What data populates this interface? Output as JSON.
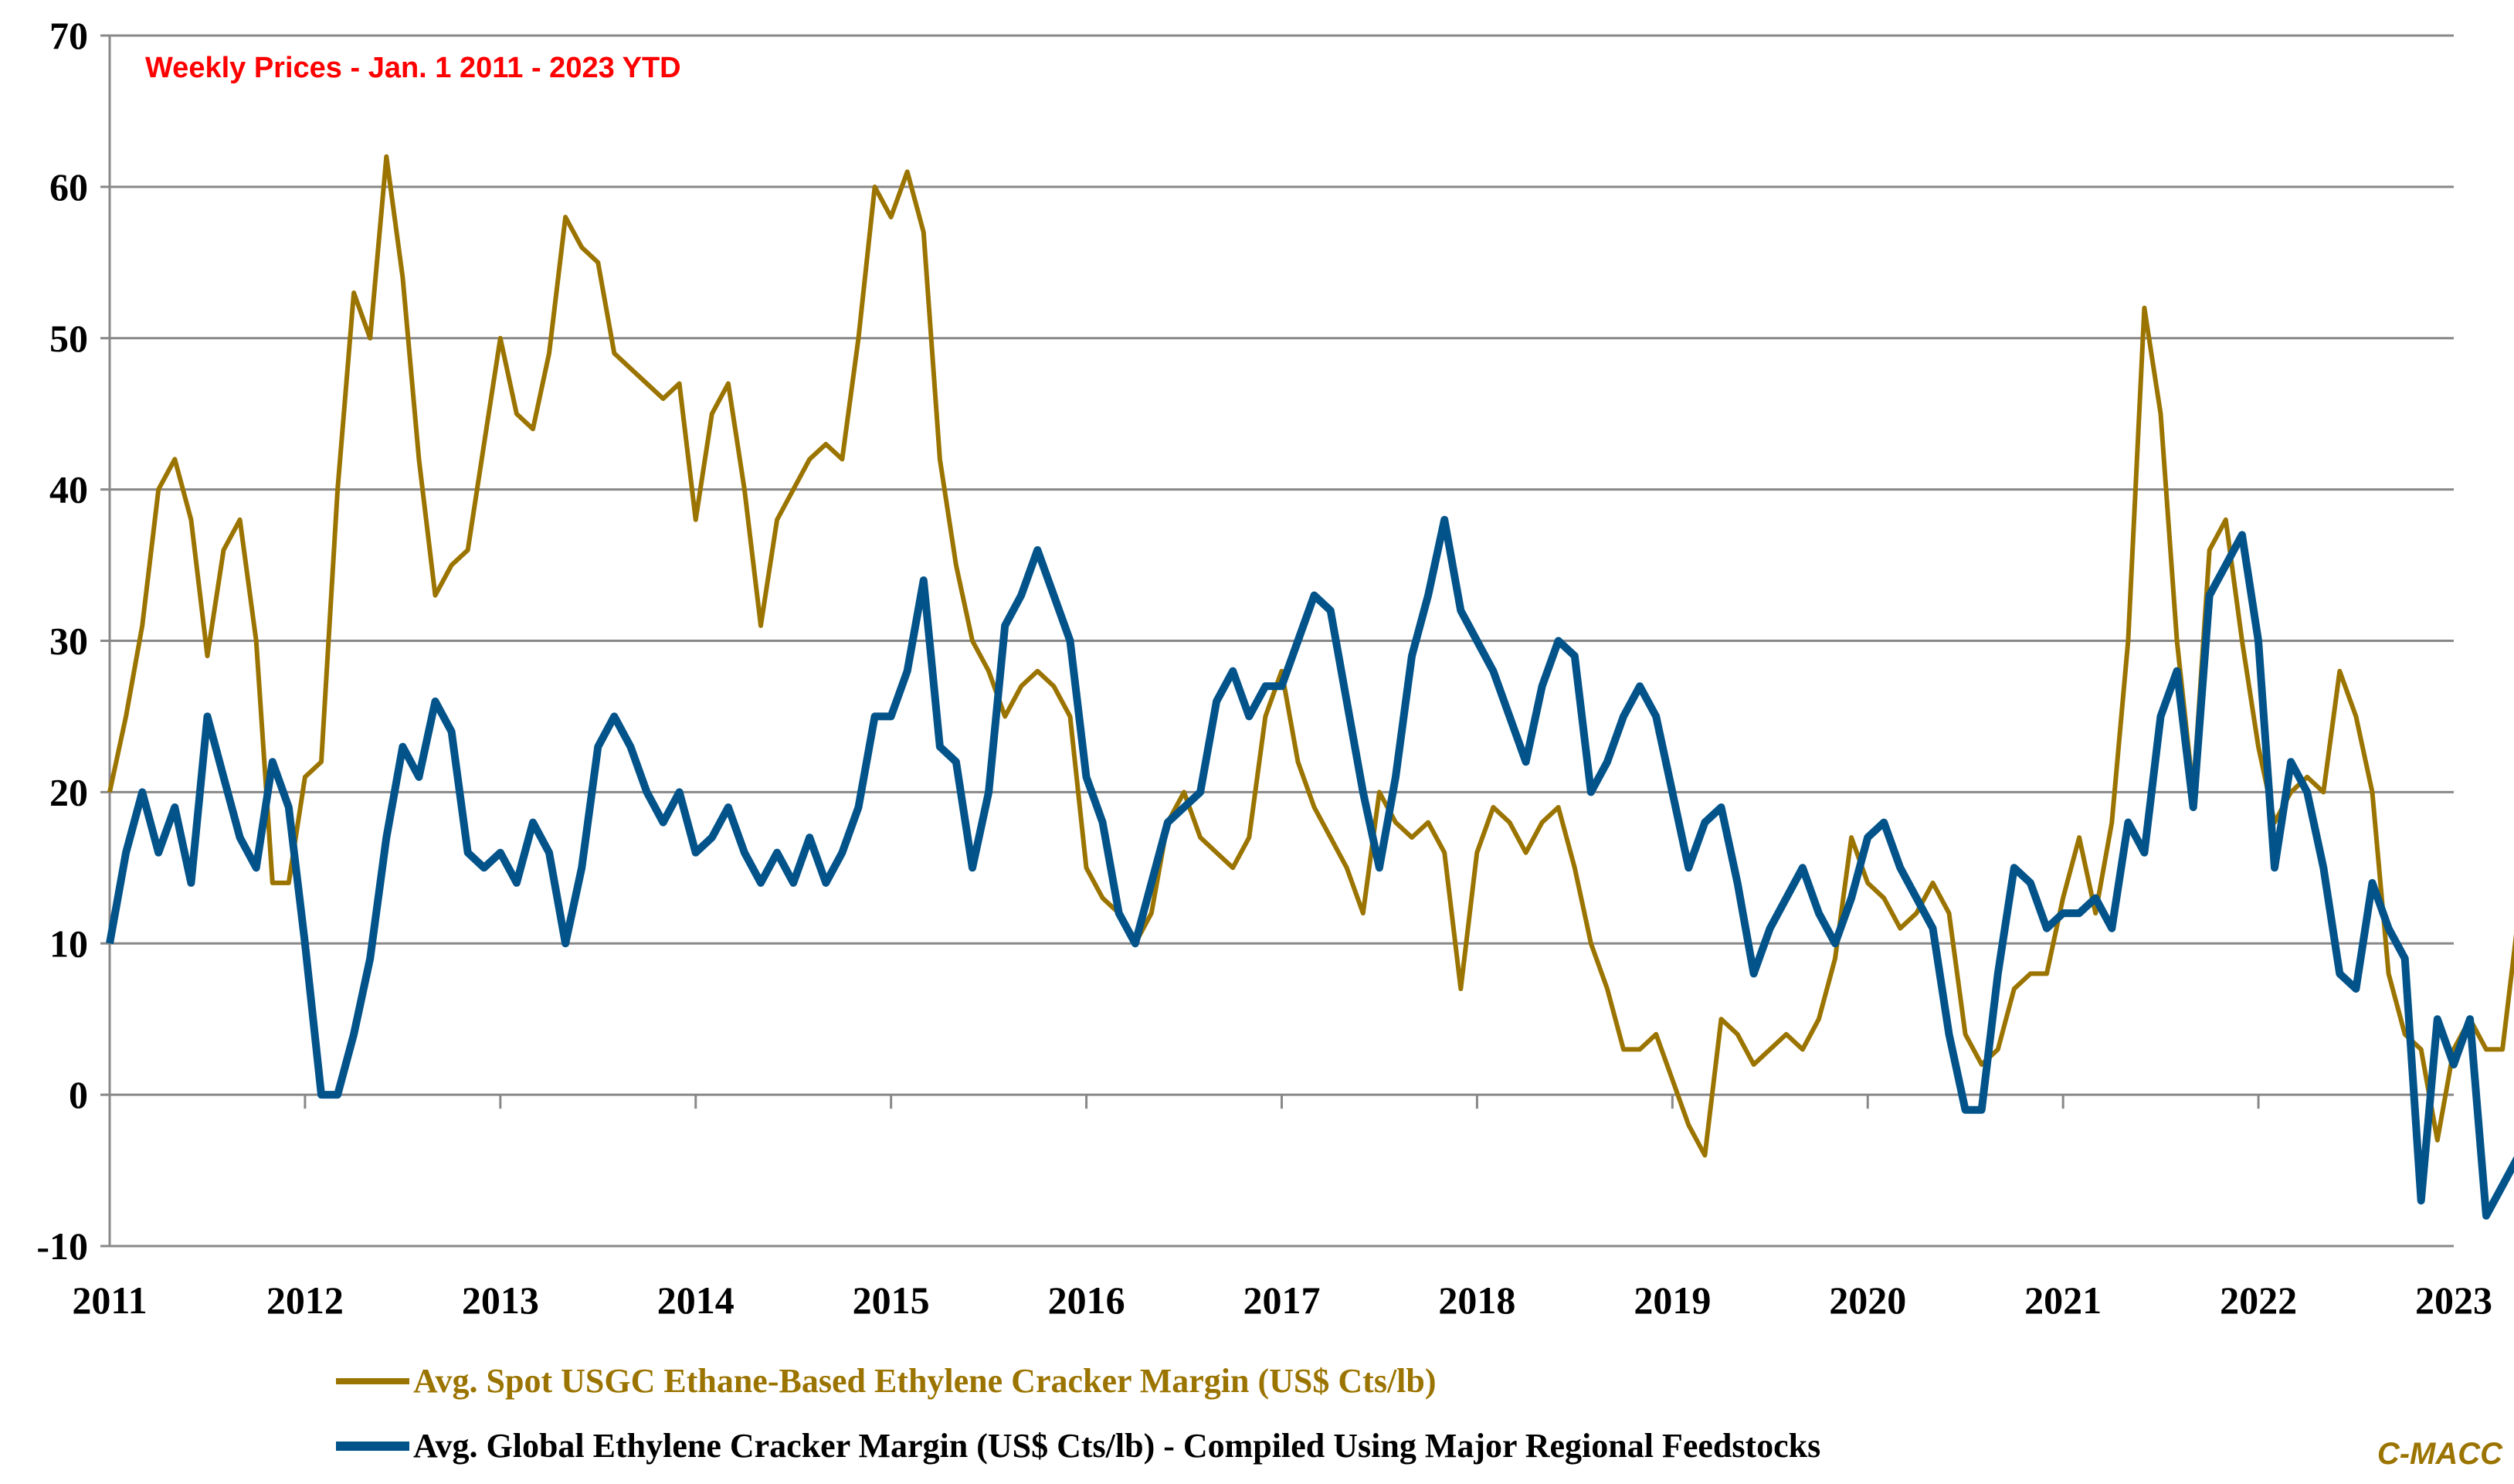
{
  "chart_data": {
    "type": "line",
    "title": "",
    "subtitle": "Weekly Prices - Jan. 1 2011 - 2023 YTD",
    "xlabel": "",
    "ylabel": "",
    "xlim": [
      2011,
      2023
    ],
    "ylim": [
      -10,
      70
    ],
    "yticks": [
      -10,
      0,
      10,
      20,
      30,
      40,
      50,
      60,
      70
    ],
    "xticks": [
      "2011",
      "2012",
      "2013",
      "2014",
      "2015",
      "2016",
      "2017",
      "2018",
      "2019",
      "2020",
      "2021",
      "2022",
      "2023"
    ],
    "grid": "horizontal",
    "legend_position": "bottom",
    "credit": "C-MACC",
    "x_step_years": 0.08333,
    "x_start": 2011,
    "series": [
      {
        "name": "Avg. Spot USGC Ethane-Based Ethylene Cracker Margin (US$ Cts/lb)",
        "color": "#9b7400",
        "values": [
          20,
          25,
          31,
          40,
          42,
          38,
          29,
          36,
          38,
          30,
          14,
          14,
          21,
          22,
          40,
          53,
          50,
          62,
          54,
          42,
          33,
          35,
          36,
          43,
          50,
          45,
          44,
          49,
          58,
          56,
          55,
          49,
          48,
          47,
          46,
          47,
          38,
          45,
          47,
          40,
          31,
          38,
          40,
          42,
          43,
          42,
          50,
          60,
          58,
          61,
          57,
          42,
          35,
          30,
          28,
          25,
          27,
          28,
          27,
          25,
          15,
          13,
          12,
          10,
          12,
          18,
          20,
          17,
          16,
          15,
          17,
          25,
          28,
          22,
          19,
          17,
          15,
          12,
          20,
          18,
          17,
          18,
          16,
          7,
          16,
          19,
          18,
          16,
          18,
          19,
          15,
          10,
          7,
          3,
          3,
          4,
          1,
          -2,
          -4,
          5,
          4,
          2,
          3,
          4,
          3,
          5,
          9,
          17,
          14,
          13,
          11,
          12,
          14,
          12,
          4,
          2,
          3,
          7,
          8,
          8,
          13,
          17,
          12,
          18,
          30,
          52,
          45,
          30,
          20,
          36,
          38,
          30,
          23,
          18,
          20,
          21,
          20,
          28,
          25,
          20,
          8,
          4,
          3,
          -3,
          3,
          5,
          3,
          3,
          12
        ]
      },
      {
        "name": "Avg. Global Ethylene Cracker Margin (US$ Cts/lb) - Compiled Using Major Regional Feedstocks",
        "color": "#02538a",
        "values": [
          10,
          16,
          20,
          16,
          19,
          14,
          25,
          21,
          17,
          15,
          22,
          19,
          10,
          0,
          0,
          4,
          9,
          17,
          23,
          21,
          26,
          24,
          16,
          15,
          16,
          14,
          18,
          16,
          10,
          15,
          23,
          25,
          23,
          20,
          18,
          20,
          16,
          17,
          19,
          16,
          14,
          16,
          14,
          17,
          14,
          16,
          19,
          25,
          25,
          28,
          34,
          23,
          22,
          15,
          20,
          31,
          33,
          36,
          33,
          30,
          21,
          18,
          12,
          10,
          14,
          18,
          19,
          20,
          26,
          28,
          25,
          27,
          27,
          30,
          33,
          32,
          26,
          20,
          15,
          21,
          29,
          33,
          38,
          32,
          30,
          28,
          25,
          22,
          27,
          30,
          29,
          20,
          22,
          25,
          27,
          25,
          20,
          15,
          18,
          19,
          14,
          8,
          11,
          13,
          15,
          12,
          10,
          13,
          17,
          18,
          15,
          13,
          11,
          4,
          -1,
          -1,
          8,
          15,
          14,
          11,
          12,
          12,
          13,
          11,
          18,
          16,
          25,
          28,
          19,
          33,
          35,
          37,
          30,
          15,
          22,
          20,
          15,
          8,
          7,
          14,
          11,
          9,
          -7,
          5,
          2,
          5,
          -8,
          -6,
          -4
        ]
      }
    ]
  }
}
